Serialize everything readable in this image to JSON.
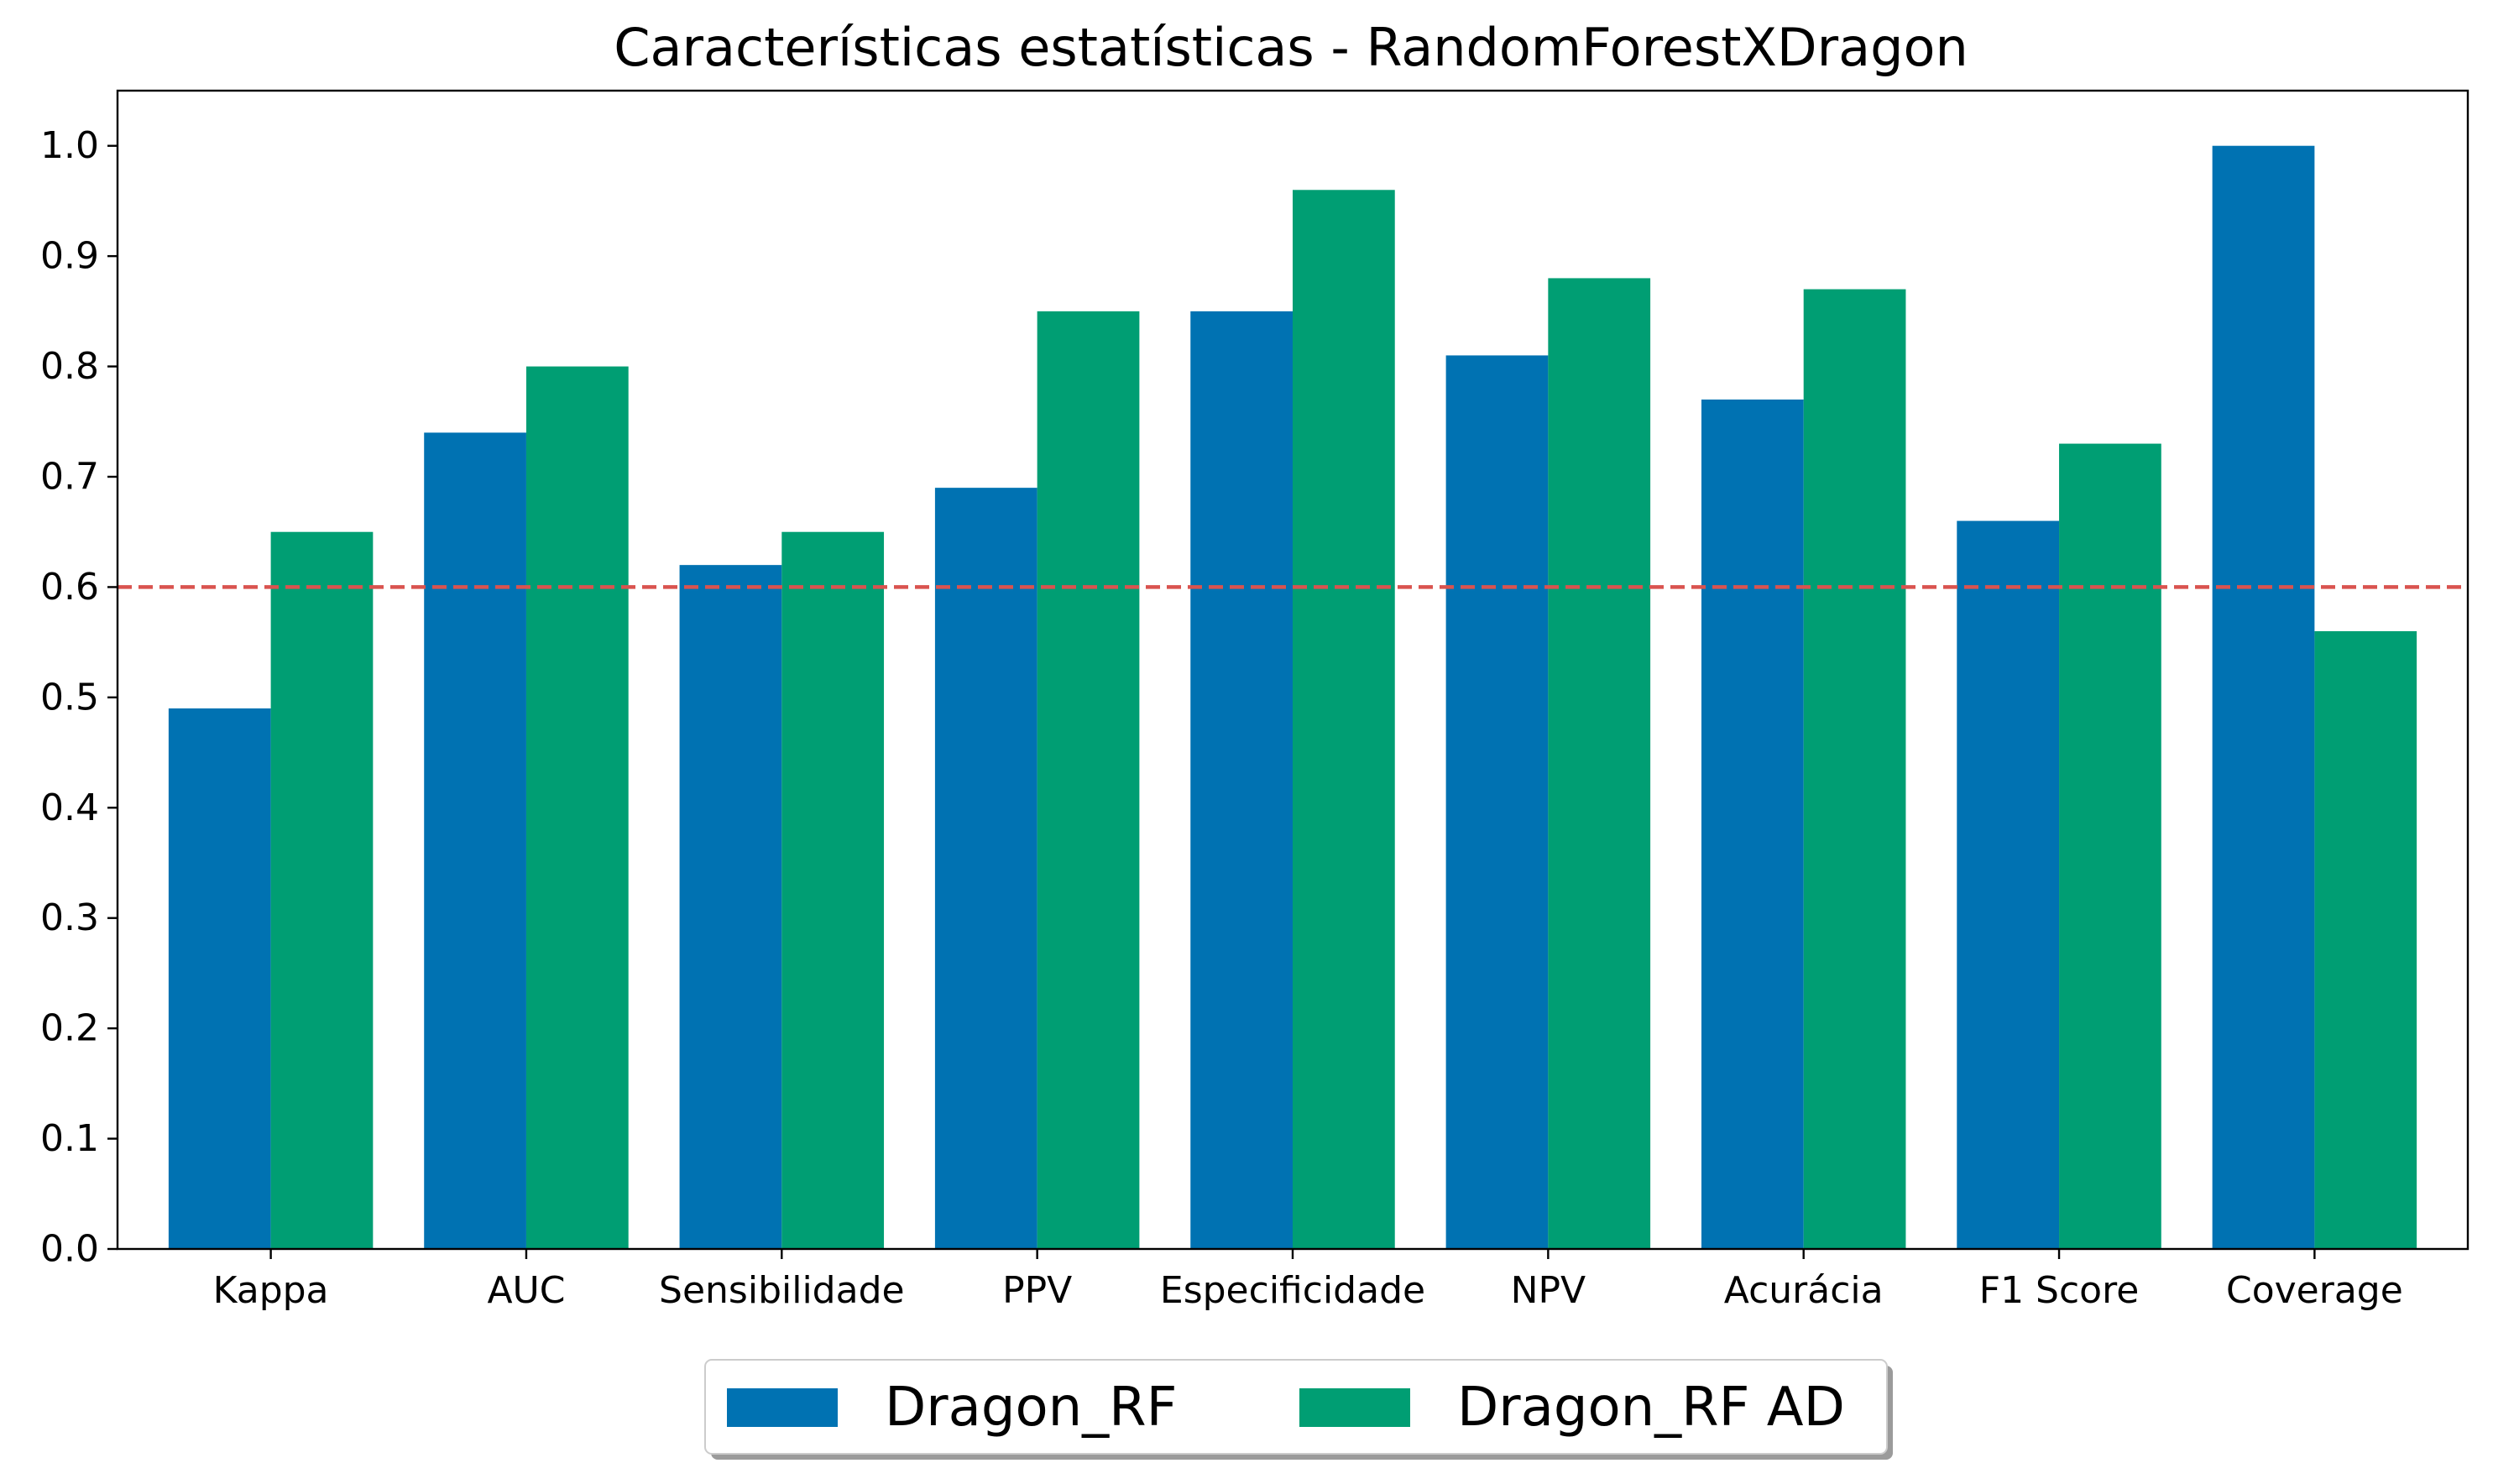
{
  "chart_data": {
    "type": "bar",
    "title": "Características estatísticas - RandomForestXDragon",
    "xlabel": "",
    "ylabel": "",
    "categories": [
      "Kappa",
      "AUC",
      "Sensibilidade",
      "PPV",
      "Especificidade",
      "NPV",
      "Acurácia",
      "F1 Score",
      "Coverage"
    ],
    "series": [
      {
        "name": "Dragon_RF",
        "color": "#0072B2",
        "values": [
          0.49,
          0.74,
          0.62,
          0.69,
          0.85,
          0.81,
          0.77,
          0.66,
          1.0
        ]
      },
      {
        "name": "Dragon_RF AD",
        "color": "#009E73",
        "values": [
          0.65,
          0.8,
          0.65,
          0.85,
          0.96,
          0.88,
          0.87,
          0.73,
          0.56
        ]
      }
    ],
    "ylim": [
      0,
      1.05
    ],
    "yticks": [
      "0.0",
      "0.1",
      "0.2",
      "0.3",
      "0.4",
      "0.5",
      "0.6",
      "0.7",
      "0.8",
      "0.9",
      "1.0"
    ],
    "threshold": {
      "value": 0.6,
      "color": "#D9534F",
      "style": "dashed"
    },
    "grid": false,
    "legend_position": "bottom-center"
  }
}
